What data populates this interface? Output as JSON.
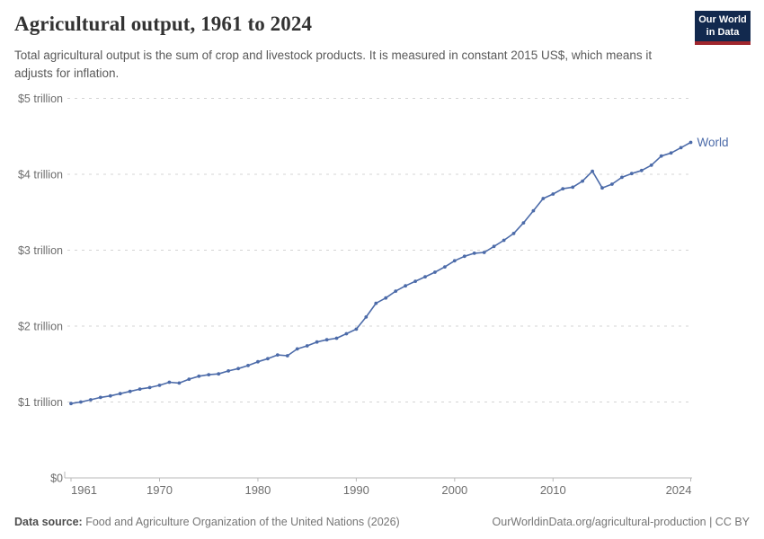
{
  "header": {
    "title": "Agricultural output, 1961 to 2024",
    "subtitle": "Total agricultural output is the sum of crop and livestock products. It is measured in constant 2015 US$, which means it adjusts for inflation.",
    "logo": {
      "line1": "Our World",
      "line2": "in Data"
    }
  },
  "chart_data": {
    "type": "line",
    "title": "Agricultural output, 1961 to 2024",
    "unit": "constant 2015 US$ (trillions)",
    "xlim": [
      1961,
      2024
    ],
    "ylim": [
      0,
      5
    ],
    "grid": "horizontal-dashed",
    "legend": "end-of-line-label",
    "x_ticks": [
      1961,
      1970,
      1980,
      1990,
      2000,
      2010,
      2024
    ],
    "y_ticks": [
      {
        "value": 0,
        "label": "$0"
      },
      {
        "value": 1,
        "label": "$1 trillion"
      },
      {
        "value": 2,
        "label": "$2 trillion"
      },
      {
        "value": 3,
        "label": "$3 trillion"
      },
      {
        "value": 4,
        "label": "$4 trillion"
      },
      {
        "value": 5,
        "label": "$5 trillion"
      }
    ],
    "x": [
      1961,
      1962,
      1963,
      1964,
      1965,
      1966,
      1967,
      1968,
      1969,
      1970,
      1971,
      1972,
      1973,
      1974,
      1975,
      1976,
      1977,
      1978,
      1979,
      1980,
      1981,
      1982,
      1983,
      1984,
      1985,
      1986,
      1987,
      1988,
      1989,
      1990,
      1991,
      1992,
      1993,
      1994,
      1995,
      1996,
      1997,
      1998,
      1999,
      2000,
      2001,
      2002,
      2003,
      2004,
      2005,
      2006,
      2007,
      2008,
      2009,
      2010,
      2011,
      2012,
      2013,
      2014,
      2015,
      2016,
      2017,
      2018,
      2019,
      2020,
      2021,
      2022,
      2023,
      2024
    ],
    "series": [
      {
        "name": "World",
        "color": "#4c6ba9",
        "values": [
          0.98,
          1.0,
          1.03,
          1.06,
          1.08,
          1.11,
          1.14,
          1.17,
          1.19,
          1.22,
          1.26,
          1.25,
          1.3,
          1.34,
          1.36,
          1.37,
          1.41,
          1.44,
          1.48,
          1.53,
          1.57,
          1.62,
          1.61,
          1.7,
          1.74,
          1.79,
          1.82,
          1.84,
          1.9,
          1.96,
          2.12,
          2.3,
          2.37,
          2.46,
          2.53,
          2.59,
          2.65,
          2.71,
          2.78,
          2.86,
          2.92,
          2.96,
          2.97,
          3.05,
          3.13,
          3.22,
          3.36,
          3.52,
          3.68,
          3.74,
          3.81,
          3.83,
          3.91,
          4.04,
          3.82,
          3.87,
          3.96,
          4.01,
          4.05,
          4.12,
          4.24,
          4.28,
          4.35,
          4.42
        ]
      }
    ]
  },
  "footer": {
    "datasource_label": "Data source:",
    "datasource_text": " Food and Agriculture Organization of the United Nations (2026)",
    "attribution": "OurWorldinData.org/agricultural-production | CC BY"
  },
  "colors": {
    "line": "#4c6ba9",
    "gridline": "#d4d4d4",
    "axis": "#b8b8b8",
    "axis_label": "#6e6e6e",
    "logo_bg": "#12294e",
    "logo_stripe": "#a0262d"
  }
}
